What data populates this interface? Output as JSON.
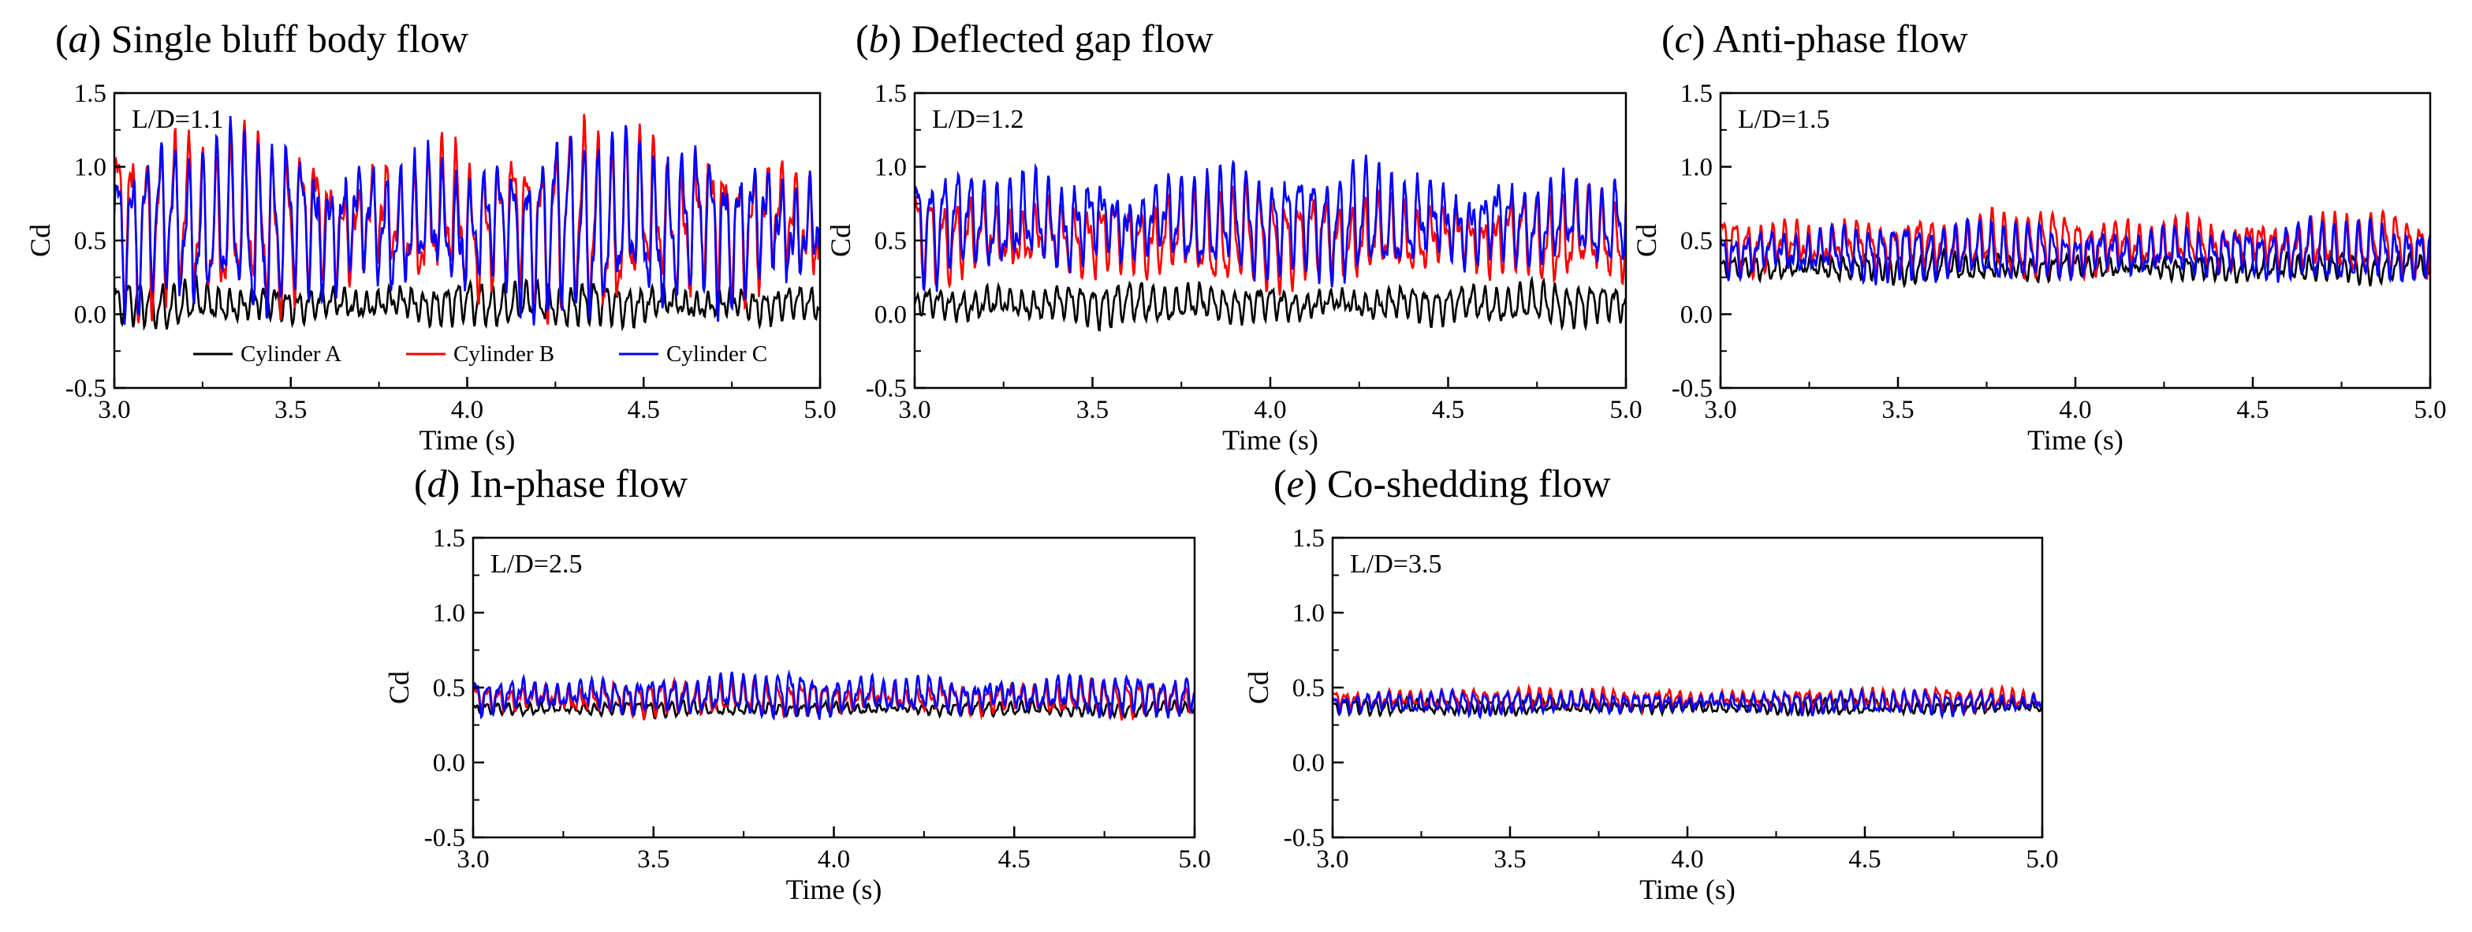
{
  "figure": {
    "description_tag": "Drag coefficient time histories of three cylinders"
  },
  "colors": {
    "cylinder_a": "#000000",
    "cylinder_b": "#ff0000",
    "cylinder_c": "#0000ff"
  },
  "legend": [
    "Cylinder A",
    "Cylinder B",
    "Cylinder C"
  ],
  "chart_data": [
    {
      "type": "line",
      "panel_letter": "a",
      "title": "Single bluff body flow",
      "annotation": "L/D=1.1",
      "xlabel": "Time (s)",
      "ylabel": "Cd",
      "xlim": [
        3.0,
        5.0
      ],
      "ylim": [
        -0.5,
        1.5
      ],
      "xticks": [
        "3.0",
        "3.5",
        "4.0",
        "4.5",
        "5.0"
      ],
      "yticks": [
        "-0.5",
        "0.0",
        "0.5",
        "1.0",
        "1.5"
      ],
      "show_legend": true,
      "series": [
        {
          "name": "Cylinder A",
          "mean": 0.07,
          "amp": 0.12,
          "freq": 31,
          "phase": 0.4
        },
        {
          "name": "Cylinder B",
          "mean": 0.62,
          "amp": 0.46,
          "freq": 25,
          "phase": 0.1
        },
        {
          "name": "Cylinder C",
          "mean": 0.6,
          "amp": 0.46,
          "freq": 25,
          "phase": 0.0
        }
      ]
    },
    {
      "type": "line",
      "panel_letter": "b",
      "title": "Deflected gap flow",
      "annotation": "L/D=1.2",
      "xlabel": "Time (s)",
      "ylabel": "Cd",
      "xlim": [
        3.0,
        5.0
      ],
      "ylim": [
        -0.5,
        1.5
      ],
      "xticks": [
        "3.0",
        "3.5",
        "4.0",
        "4.5",
        "5.0"
      ],
      "yticks": [
        "-0.5",
        "0.0",
        "0.5",
        "1.0",
        "1.5"
      ],
      "show_legend": false,
      "series": [
        {
          "name": "Cylinder A",
          "mean": 0.07,
          "amp": 0.11,
          "freq": 30,
          "phase": 1.1
        },
        {
          "name": "Cylinder B",
          "mean": 0.52,
          "amp": 0.26,
          "freq": 27,
          "phase": 0.5
        },
        {
          "name": "Cylinder C",
          "mean": 0.62,
          "amp": 0.3,
          "freq": 27,
          "phase": 0.2
        }
      ]
    },
    {
      "type": "line",
      "panel_letter": "c",
      "title": "Anti-phase flow",
      "annotation": "L/D=1.5",
      "xlabel": "Time (s)",
      "ylabel": "Cd",
      "xlim": [
        3.0,
        5.0
      ],
      "ylim": [
        -0.5,
        1.5
      ],
      "xticks": [
        "3.0",
        "3.5",
        "4.0",
        "4.5",
        "5.0"
      ],
      "yticks": [
        "-0.5",
        "0.0",
        "0.5",
        "1.0",
        "1.5"
      ],
      "show_legend": false,
      "series": [
        {
          "name": "Cylinder A",
          "mean": 0.32,
          "amp": 0.08,
          "freq": 32,
          "phase": 0.9
        },
        {
          "name": "Cylinder B",
          "mean": 0.47,
          "amp": 0.17,
          "freq": 29,
          "phase": 0.3
        },
        {
          "name": "Cylinder C",
          "mean": 0.42,
          "amp": 0.16,
          "freq": 29,
          "phase": 0.7
        }
      ]
    },
    {
      "type": "line",
      "panel_letter": "d",
      "title": "In-phase flow",
      "annotation": "L/D=2.5",
      "xlabel": "Time (s)",
      "ylabel": "Cd",
      "xlim": [
        3.0,
        5.0
      ],
      "ylim": [
        -0.5,
        1.5
      ],
      "xticks": [
        "3.0",
        "3.5",
        "4.0",
        "4.5",
        "5.0"
      ],
      "yticks": [
        "-0.5",
        "0.0",
        "0.5",
        "1.0",
        "1.5"
      ],
      "show_legend": false,
      "series": [
        {
          "name": "Cylinder A",
          "mean": 0.36,
          "amp": 0.04,
          "freq": 33,
          "phase": 0.6
        },
        {
          "name": "Cylinder B",
          "mean": 0.43,
          "amp": 0.09,
          "freq": 31,
          "phase": 0.4
        },
        {
          "name": "Cylinder C",
          "mean": 0.45,
          "amp": 0.11,
          "freq": 31,
          "phase": 0.0
        }
      ]
    },
    {
      "type": "line",
      "panel_letter": "e",
      "title": "Co-shedding flow",
      "annotation": "L/D=3.5",
      "xlabel": "Time (s)",
      "ylabel": "Cd",
      "xlim": [
        3.0,
        5.0
      ],
      "ylim": [
        -0.5,
        1.5
      ],
      "xticks": [
        "3.0",
        "3.5",
        "4.0",
        "4.5",
        "5.0"
      ],
      "yticks": [
        "-0.5",
        "0.0",
        "0.5",
        "1.0",
        "1.5"
      ],
      "show_legend": false,
      "series": [
        {
          "name": "Cylinder A",
          "mean": 0.37,
          "amp": 0.04,
          "freq": 34,
          "phase": 0.8
        },
        {
          "name": "Cylinder B",
          "mean": 0.42,
          "amp": 0.06,
          "freq": 33,
          "phase": 0.2
        },
        {
          "name": "Cylinder C",
          "mean": 0.4,
          "amp": 0.06,
          "freq": 33,
          "phase": 0.5
        }
      ]
    }
  ]
}
